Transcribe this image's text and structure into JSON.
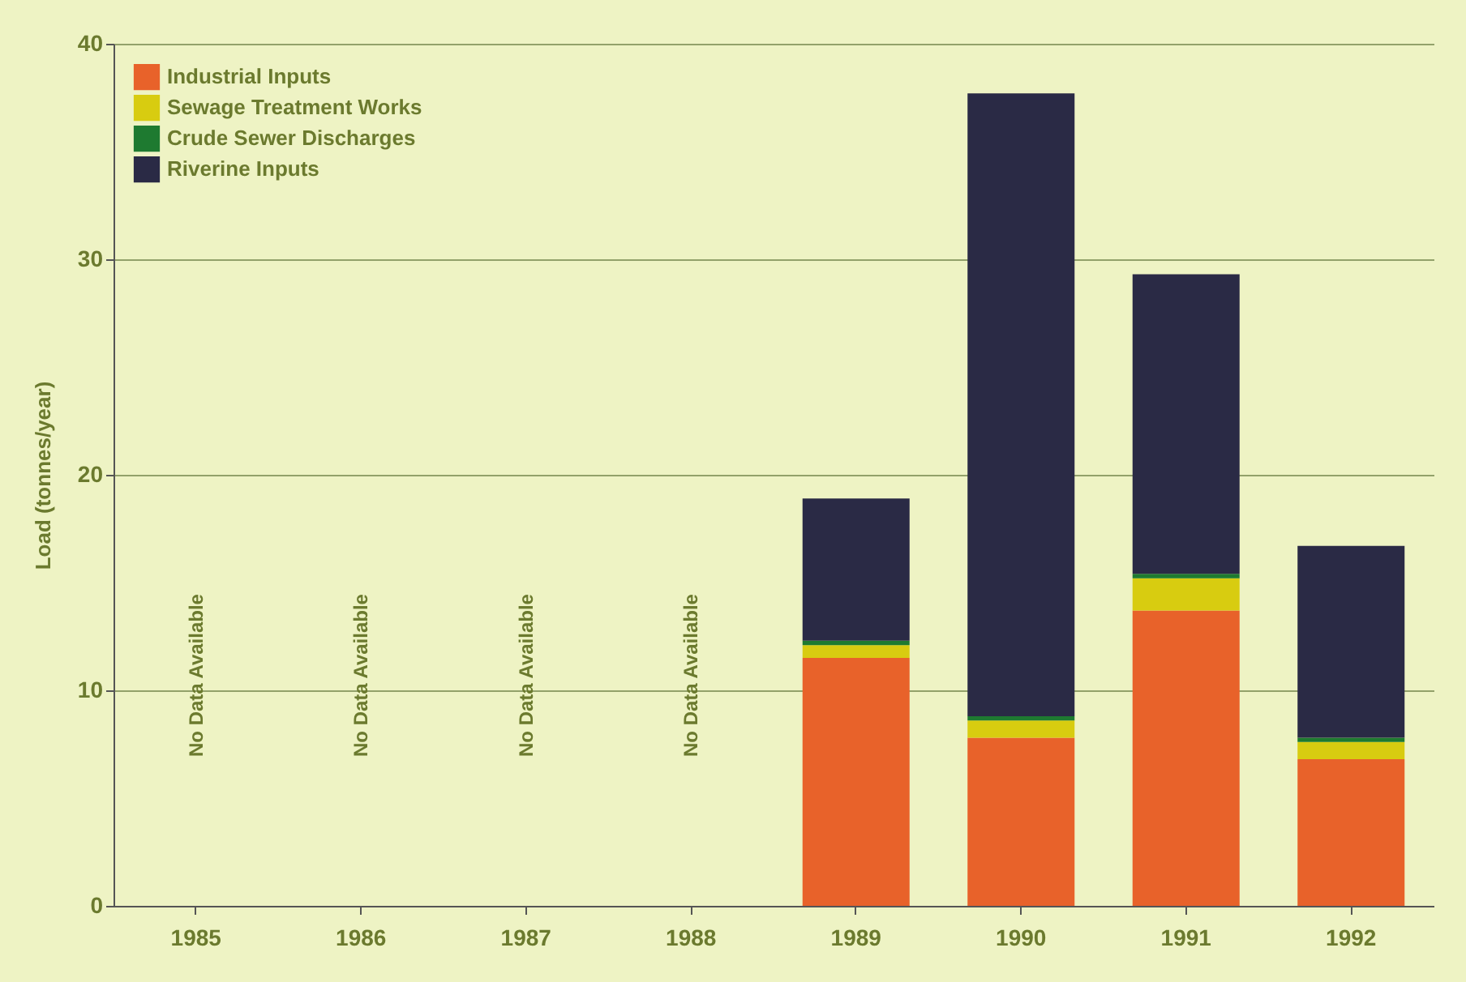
{
  "chart_data": {
    "type": "bar",
    "stacked": true,
    "ylabel": "Load (tonnes/year)",
    "categories": [
      "1985",
      "1986",
      "1987",
      "1988",
      "1989",
      "1990",
      "1991",
      "1992"
    ],
    "series": [
      {
        "name": "Industrial Inputs",
        "color": "#e8622a",
        "values": [
          null,
          null,
          null,
          null,
          11.5,
          7.8,
          13.7,
          6.8
        ]
      },
      {
        "name": "Sewage Treatment Works",
        "color": "#d8cc10",
        "values": [
          null,
          null,
          null,
          null,
          0.6,
          0.8,
          1.5,
          0.8
        ]
      },
      {
        "name": "Crude Sewer Discharges",
        "color": "#1e7a30",
        "values": [
          null,
          null,
          null,
          null,
          0.2,
          0.2,
          0.2,
          0.2
        ]
      },
      {
        "name": "Riverine Inputs",
        "color": "#2a2a45",
        "values": [
          null,
          null,
          null,
          null,
          6.6,
          28.9,
          13.9,
          8.9
        ]
      }
    ],
    "annotations": [
      "No Data Available",
      "No Data Available",
      "No Data Available",
      "No Data Available"
    ],
    "ylim": [
      0,
      40
    ],
    "yticks": [
      0,
      10,
      20,
      30,
      40
    ],
    "grid": "y",
    "legend": "top left"
  }
}
